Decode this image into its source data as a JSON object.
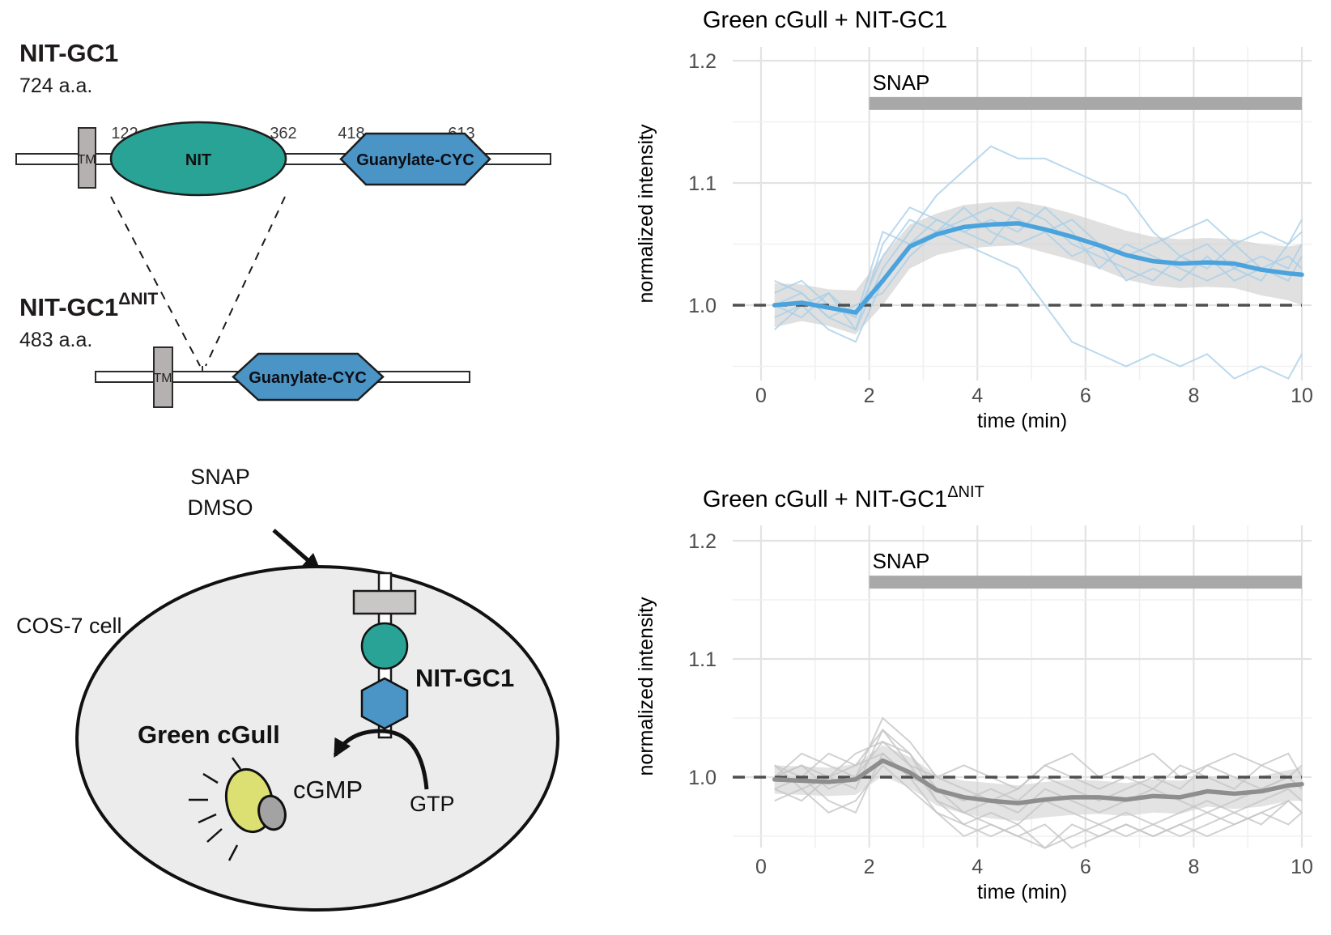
{
  "figure": {
    "protein_panel": {
      "full": {
        "title": "NIT-GC1",
        "length": "724 a.a.",
        "tm_label": "TM",
        "nit_label": "NIT",
        "cyc_label": "Guanylate-CYC",
        "nit_start": "122",
        "nit_end": "362",
        "cyc_start": "418",
        "cyc_end": "613"
      },
      "truncated": {
        "title": "NIT-GC1",
        "title_sup": "ΔNIT",
        "length": "483 a.a.",
        "tm_label": "TM",
        "cyc_label": "Guanylate-CYC"
      }
    },
    "cell_panel": {
      "treatment_line1": "SNAP",
      "treatment_line2": "DMSO",
      "cell_label": "COS-7 cell",
      "sensor_label": "Green cGull",
      "construct_label": "NIT-GC1",
      "product_label": "cGMP",
      "substrate_label": "GTP"
    }
  },
  "colors": {
    "accent_blue": "#4aa3dd",
    "light_blue": "#a9cfe9",
    "ribbon_gray": "#cfcfcf",
    "mean_gray": "#8e8e8e",
    "trace_gray": "#c6c6c6",
    "bar_gray": "#a8a8a8",
    "teal": "#29a396",
    "domain_blue": "#4a94c6",
    "membrane_gray": "#c9c6c6",
    "tm_gray": "#b6b1b1",
    "cell_fill": "#ececec",
    "sensor_yellow": "#dce072",
    "sensor_knob_gray": "#a3a3a3"
  },
  "chart_data": [
    {
      "type": "line",
      "title": "Green cGull + NIT-GC1",
      "title_sup": "",
      "xlabel": "time (min)",
      "ylabel": "normalized intensity",
      "xlim": [
        0,
        10
      ],
      "ylim": [
        0.94,
        1.21
      ],
      "xticks": [
        0,
        2,
        4,
        6,
        8,
        10
      ],
      "yticks": [
        1.0,
        1.1,
        1.2
      ],
      "yticks_minor": [
        0.95,
        1.05,
        1.15
      ],
      "grid": true,
      "baseline": 1.0,
      "treatment_bar": {
        "label": "SNAP",
        "start": 2,
        "end": 10,
        "y": 1.165
      },
      "x": [
        0.25,
        0.75,
        1.25,
        1.75,
        2.25,
        2.75,
        3.25,
        3.75,
        4.25,
        4.75,
        5.25,
        5.75,
        6.25,
        6.75,
        7.25,
        7.75,
        8.25,
        8.75,
        9.25,
        9.75,
        10
      ],
      "mean": [
        1.0,
        1.002,
        0.998,
        0.994,
        1.02,
        1.048,
        1.058,
        1.064,
        1.066,
        1.067,
        1.062,
        1.056,
        1.049,
        1.041,
        1.036,
        1.034,
        1.035,
        1.034,
        1.029,
        1.026,
        1.025
      ],
      "sem": [
        0.018,
        0.015,
        0.015,
        0.018,
        0.02,
        0.018,
        0.017,
        0.018,
        0.018,
        0.018,
        0.019,
        0.019,
        0.019,
        0.02,
        0.02,
        0.02,
        0.02,
        0.02,
        0.021,
        0.022,
        0.025
      ],
      "traces": [
        [
          1.0,
          1.01,
          0.99,
          0.98,
          1.03,
          1.06,
          1.09,
          1.11,
          1.13,
          1.12,
          1.12,
          1.11,
          1.1,
          1.09,
          1.06,
          1.04,
          1.05,
          1.03,
          1.02,
          1.05,
          1.06
        ],
        [
          0.99,
          1.0,
          0.98,
          0.97,
          1.02,
          1.05,
          1.06,
          1.05,
          1.04,
          1.03,
          1.0,
          0.97,
          0.96,
          0.95,
          0.96,
          0.95,
          0.96,
          0.94,
          0.95,
          0.94,
          0.96
        ],
        [
          1.01,
          1.02,
          1.0,
          0.99,
          1.04,
          1.07,
          1.06,
          1.07,
          1.08,
          1.07,
          1.06,
          1.07,
          1.05,
          1.04,
          1.05,
          1.06,
          1.07,
          1.05,
          1.06,
          1.05,
          1.07
        ],
        [
          1.0,
          0.99,
          1.01,
          0.98,
          1.05,
          1.08,
          1.07,
          1.06,
          1.05,
          1.08,
          1.07,
          1.05,
          1.04,
          1.03,
          1.02,
          1.04,
          1.03,
          1.05,
          1.03,
          1.04,
          1.03
        ],
        [
          1.02,
          1.01,
          0.99,
          1.0,
          1.01,
          1.04,
          1.06,
          1.08,
          1.06,
          1.05,
          1.06,
          1.04,
          1.05,
          1.02,
          1.03,
          1.02,
          1.04,
          1.02,
          1.03,
          1.02,
          1.04
        ],
        [
          0.98,
          1.0,
          1.01,
          0.99,
          1.06,
          1.05,
          1.07,
          1.06,
          1.07,
          1.06,
          1.08,
          1.06,
          1.03,
          1.05,
          1.04,
          1.03,
          1.02,
          1.03,
          1.04,
          1.03,
          1.05
        ]
      ],
      "colors": {
        "mean": "#4aa3dd",
        "traces": "#a9cfe9",
        "ribbon": "#cfcfcf",
        "bar": "#a8a8a8"
      }
    },
    {
      "type": "line",
      "title": "Green cGull + NIT-GC1",
      "title_sup": "ΔNIT",
      "xlabel": "time (min)",
      "ylabel": "normalized intensity",
      "xlim": [
        0,
        10
      ],
      "ylim": [
        0.94,
        1.21
      ],
      "xticks": [
        0,
        2,
        4,
        6,
        8,
        10
      ],
      "yticks": [
        1.0,
        1.1,
        1.2
      ],
      "yticks_minor": [
        0.95,
        1.05,
        1.15
      ],
      "grid": true,
      "baseline": 1.0,
      "treatment_bar": {
        "label": "SNAP",
        "start": 2,
        "end": 10,
        "y": 1.165
      },
      "x": [
        0.25,
        0.75,
        1.25,
        1.75,
        2.25,
        2.75,
        3.25,
        3.75,
        4.25,
        4.75,
        5.25,
        5.75,
        6.25,
        6.75,
        7.25,
        7.75,
        8.25,
        8.75,
        9.25,
        9.75,
        10
      ],
      "mean": [
        0.998,
        0.997,
        0.996,
        0.998,
        1.014,
        1.004,
        0.989,
        0.983,
        0.98,
        0.978,
        0.981,
        0.983,
        0.983,
        0.981,
        0.984,
        0.983,
        0.988,
        0.986,
        0.988,
        0.993,
        0.994
      ],
      "sem": [
        0.012,
        0.012,
        0.012,
        0.013,
        0.013,
        0.013,
        0.013,
        0.014,
        0.015,
        0.015,
        0.015,
        0.015,
        0.014,
        0.014,
        0.014,
        0.014,
        0.013,
        0.013,
        0.013,
        0.013,
        0.014
      ],
      "traces": [
        [
          1.0,
          1.01,
          0.99,
          1.0,
          1.03,
          1.02,
          0.99,
          0.97,
          0.96,
          0.95,
          0.96,
          0.94,
          0.95,
          0.96,
          0.95,
          0.96,
          0.95,
          0.96,
          0.97,
          0.96,
          0.97
        ],
        [
          0.99,
          0.98,
          1.0,
          0.99,
          1.04,
          1.01,
          0.98,
          0.96,
          0.95,
          0.96,
          0.94,
          0.95,
          0.96,
          0.95,
          0.96,
          0.95,
          0.96,
          0.97,
          0.96,
          0.98,
          0.97
        ],
        [
          1.01,
          1.0,
          1.02,
          1.01,
          1.02,
          1.0,
          0.99,
          0.98,
          0.99,
          0.98,
          1.0,
          0.99,
          0.98,
          0.99,
          1.0,
          0.99,
          1.01,
          1.0,
          0.99,
          1.0,
          0.99
        ],
        [
          1.0,
          1.02,
          1.01,
          1.0,
          1.05,
          1.03,
          1.0,
          0.99,
          0.98,
          0.99,
          1.01,
          1.0,
          0.99,
          1.0,
          0.99,
          1.01,
          1.0,
          0.99,
          1.01,
          1.0,
          1.01
        ],
        [
          0.98,
          0.99,
          0.97,
          0.98,
          1.01,
          0.99,
          0.97,
          0.96,
          0.97,
          0.96,
          0.98,
          0.97,
          0.96,
          0.97,
          0.96,
          0.97,
          0.98,
          0.97,
          0.98,
          0.99,
          0.98
        ],
        [
          1.0,
          1.01,
          1.0,
          1.02,
          1.03,
          1.01,
          1.0,
          1.01,
          1.0,
          0.99,
          1.01,
          1.02,
          1.0,
          1.01,
          1.02,
          1.0,
          1.01,
          1.02,
          1.01,
          1.02,
          1.0
        ],
        [
          1.01,
          0.99,
          1.0,
          1.01,
          1.04,
          1.02,
          0.98,
          0.97,
          0.98,
          0.97,
          0.99,
          0.98,
          0.97,
          0.98,
          0.99,
          0.98,
          0.97,
          0.98,
          0.99,
          1.0,
          0.99
        ],
        [
          0.99,
          1.0,
          0.98,
          0.97,
          1.02,
          1.0,
          0.97,
          0.95,
          0.96,
          0.95,
          0.94,
          0.96,
          0.95,
          0.96,
          0.95,
          0.96,
          0.97,
          0.96,
          0.97,
          0.98,
          0.97
        ]
      ],
      "colors": {
        "mean": "#8e8e8e",
        "traces": "#c6c6c6",
        "ribbon": "#d4d4d4",
        "bar": "#a8a8a8"
      }
    }
  ]
}
